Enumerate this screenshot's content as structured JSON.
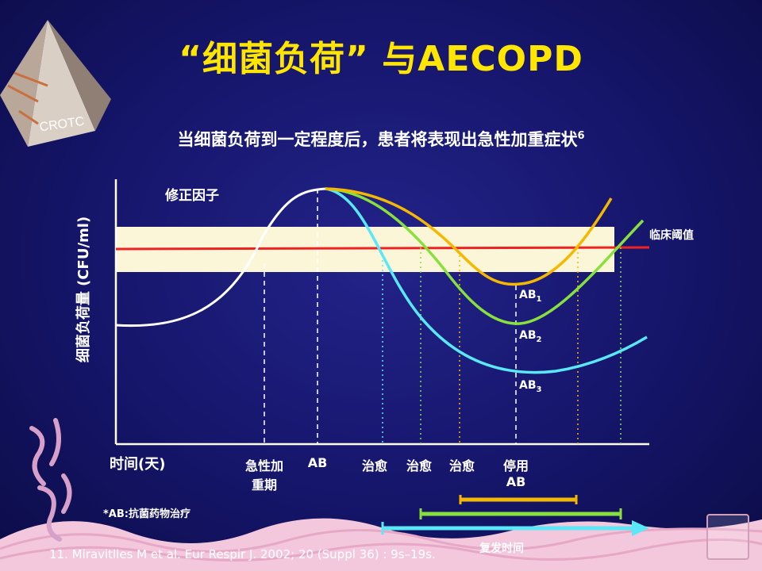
{
  "slide": {
    "title": "“细菌负荷” 与AECOPD",
    "subtitle": "当细菌负荷到一定程度后，患者将表现出急性加重症状",
    "subtitle_ref": "6",
    "logo_text": "CROTC",
    "footnote": "*AB:抗菌药物治疗",
    "citation": "11. Miravitlles M et al. Eur Respir J. 2002; 20 (Suppl 36) : 9s–19s."
  },
  "diagram": {
    "y_axis_label": "细菌负荷量 (CFU/ml)",
    "x_axis_label": "时间(天)",
    "modifier_label": "修正因子",
    "threshold_label": "临床阈值",
    "x_labels": {
      "exacerbation_line1": "急性加",
      "exacerbation_line2": "重期",
      "ab": "AB",
      "cure1": "治愈",
      "cure2": "治愈",
      "cure3": "治愈",
      "stop_line1": "停用",
      "stop_line2": "AB"
    },
    "curve_labels": {
      "ab1": "AB",
      "ab1_sub": "1",
      "ab2": "AB",
      "ab2_sub": "2",
      "ab3": "AB",
      "ab3_sub": "3"
    },
    "recurrence_label": "复发时间",
    "colors": {
      "ab1": "#f5b800",
      "ab2": "#88e03c",
      "ab3": "#5ae8f8",
      "threshold": "#ee2222",
      "band": "#fbf6d8",
      "title": "#ffe600"
    }
  }
}
